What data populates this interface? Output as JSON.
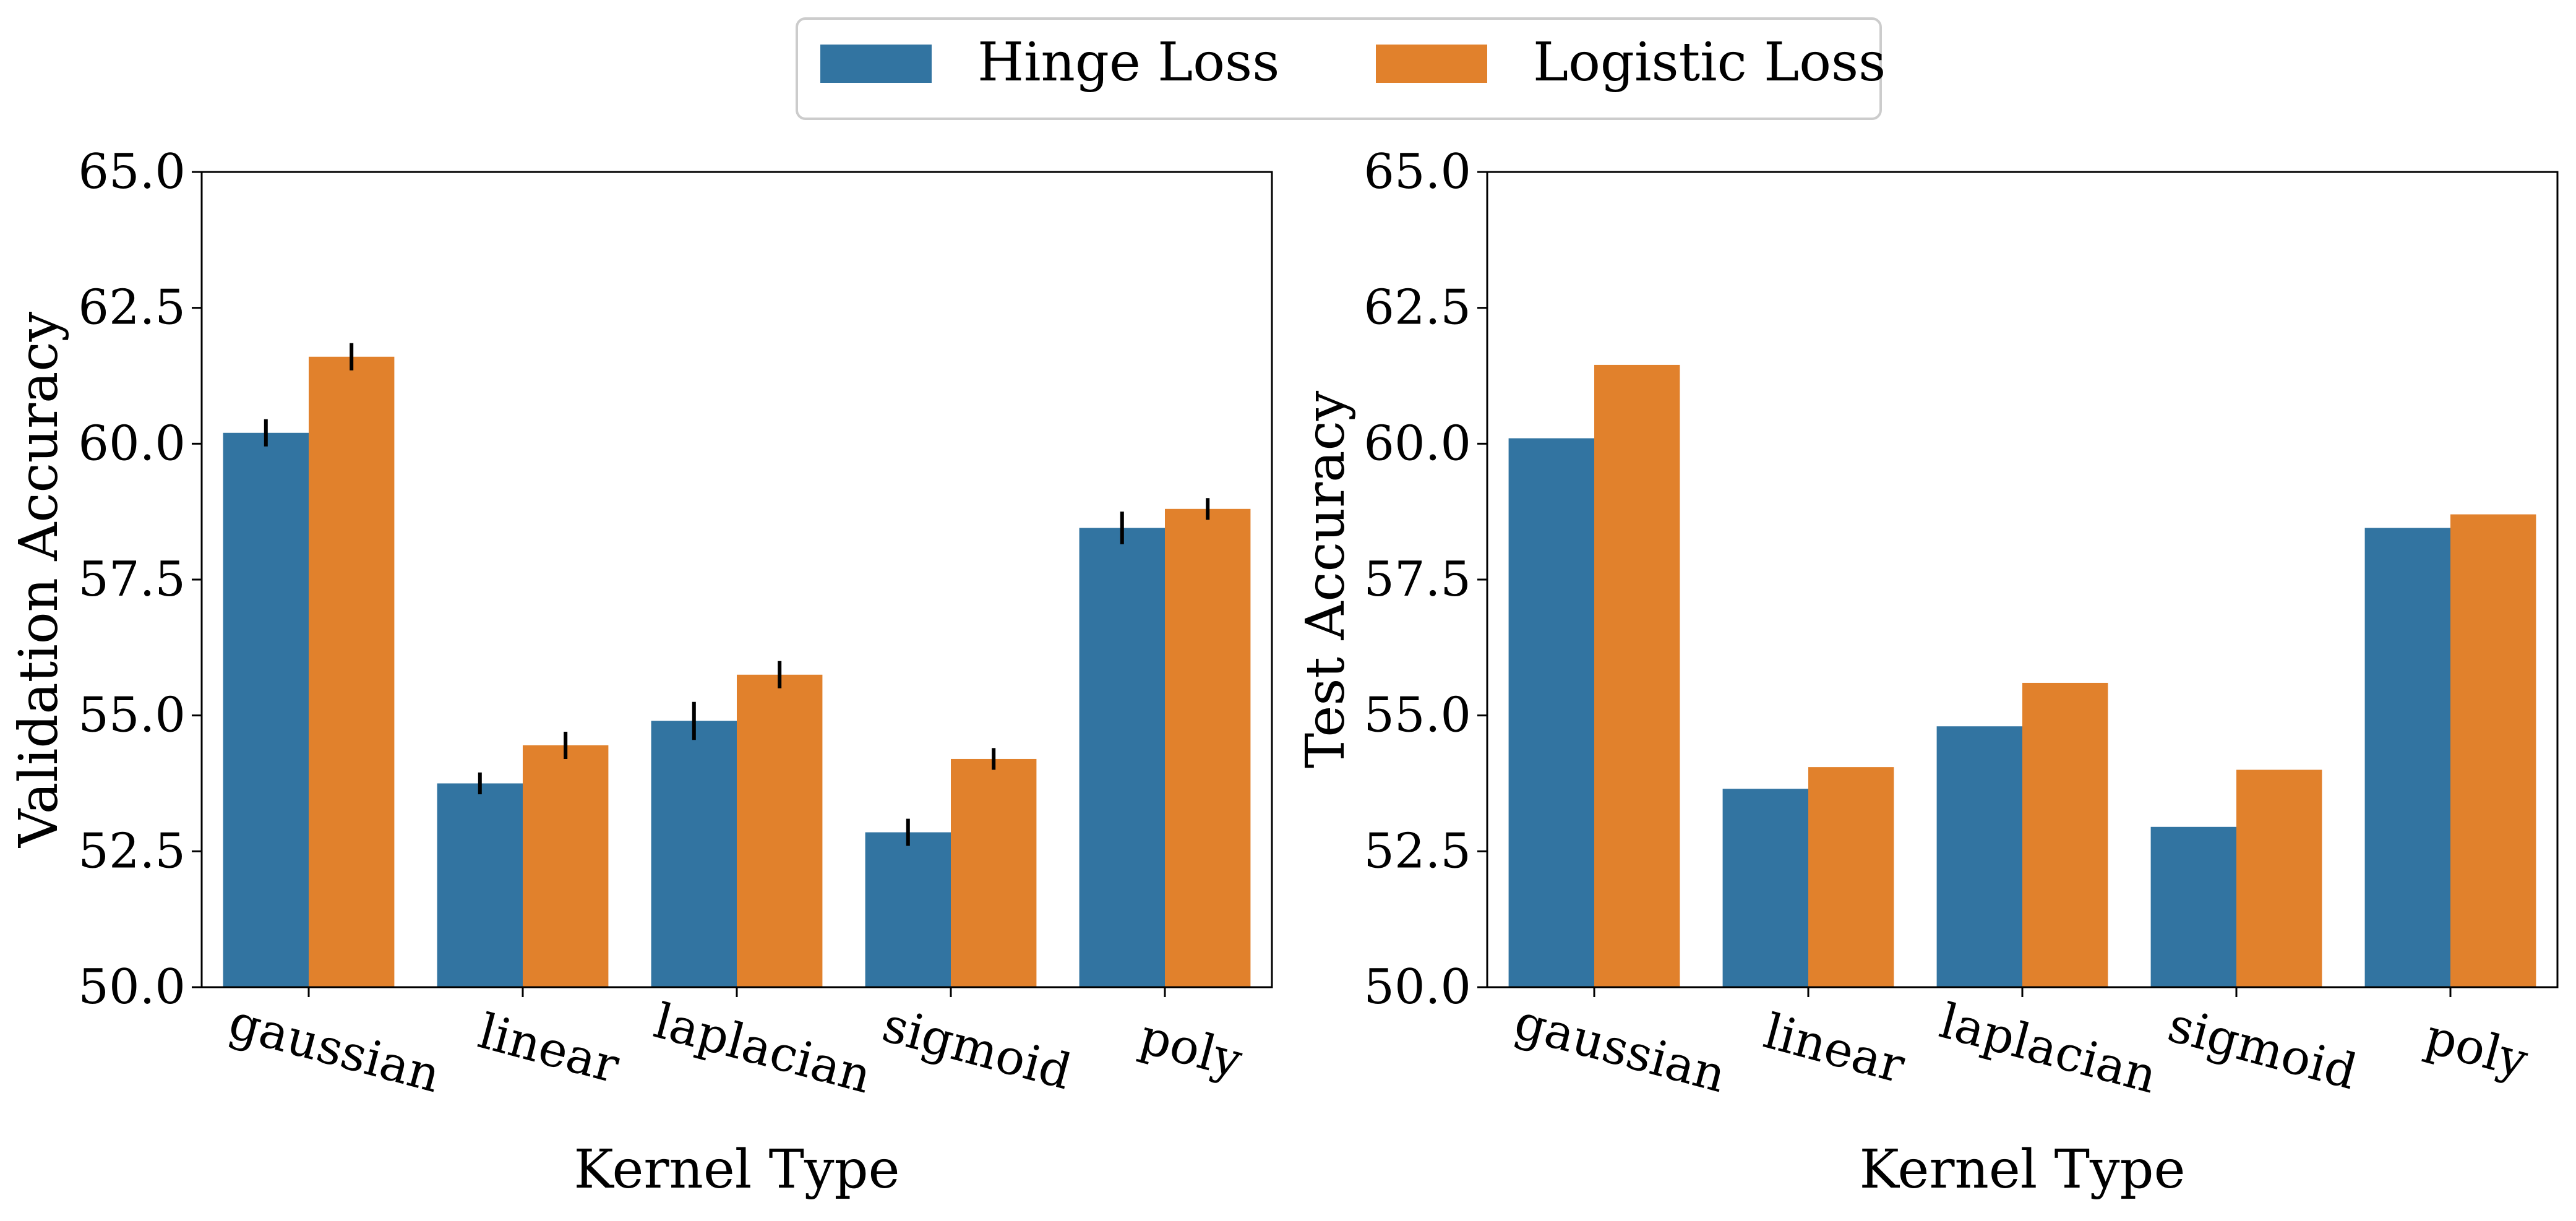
{
  "legend": {
    "placement": "top-center",
    "items": [
      {
        "label": "Hinge Loss",
        "color": "#3274a1"
      },
      {
        "label": "Logistic Loss",
        "color": "#e1812c"
      }
    ]
  },
  "chart_data": [
    {
      "type": "bar",
      "xlabel": "Kernel Type",
      "ylabel": "Validation Accuracy",
      "ylim": [
        50.0,
        65.0
      ],
      "yticks": [
        "50.0",
        "52.5",
        "55.0",
        "57.5",
        "60.0",
        "62.5",
        "65.0"
      ],
      "categories": [
        "gaussian",
        "linear",
        "laplacian",
        "sigmoid",
        "poly"
      ],
      "grid": false,
      "series": [
        {
          "name": "Hinge Loss",
          "color": "#3274a1",
          "values": [
            60.2,
            53.75,
            54.9,
            52.85,
            58.45
          ],
          "errors": [
            0.25,
            0.2,
            0.35,
            0.25,
            0.3
          ]
        },
        {
          "name": "Logistic Loss",
          "color": "#e1812c",
          "values": [
            61.6,
            54.45,
            55.75,
            54.2,
            58.8
          ],
          "errors": [
            0.25,
            0.25,
            0.25,
            0.2,
            0.2
          ]
        }
      ]
    },
    {
      "type": "bar",
      "xlabel": "Kernel Type",
      "ylabel": "Test Accuracy",
      "ylim": [
        50.0,
        65.0
      ],
      "yticks": [
        "50.0",
        "52.5",
        "55.0",
        "57.5",
        "60.0",
        "62.5",
        "65.0"
      ],
      "categories": [
        "gaussian",
        "linear",
        "laplacian",
        "sigmoid",
        "poly"
      ],
      "grid": false,
      "series": [
        {
          "name": "Hinge Loss",
          "color": "#3274a1",
          "values": [
            60.1,
            53.65,
            54.8,
            52.95,
            58.45
          ]
        },
        {
          "name": "Logistic Loss",
          "color": "#e1812c",
          "values": [
            61.45,
            54.05,
            55.6,
            54.0,
            58.7
          ]
        }
      ]
    }
  ]
}
